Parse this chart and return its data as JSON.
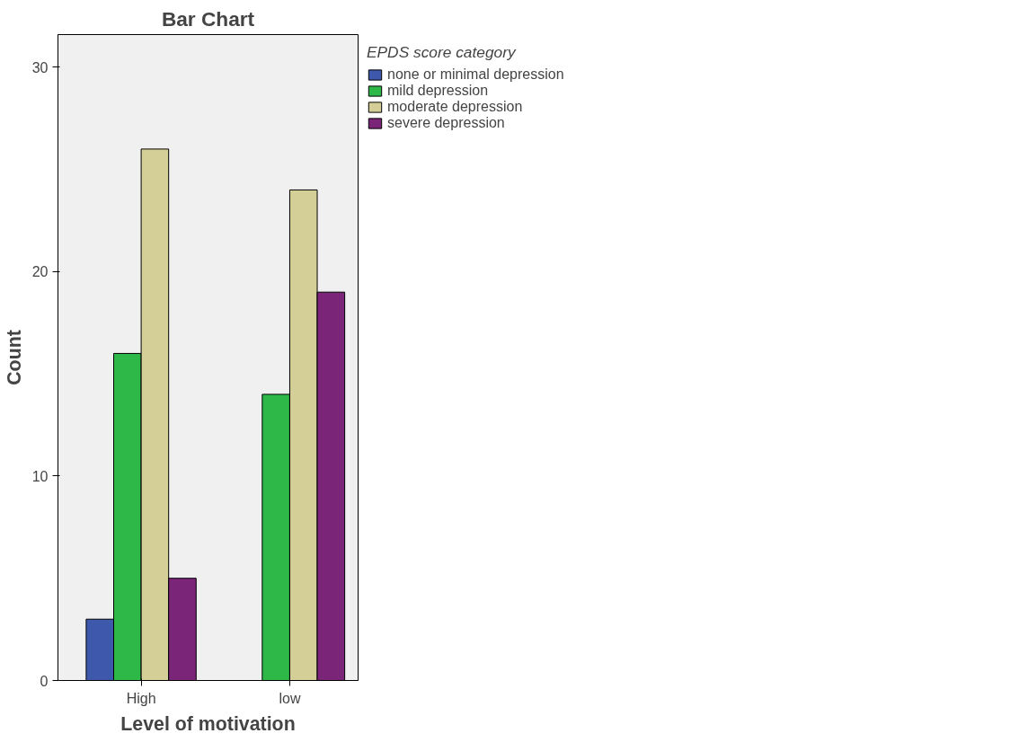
{
  "chart_data": {
    "type": "bar",
    "title": "Bar Chart",
    "xlabel": "Level of motivation",
    "ylabel": "Count",
    "legend_title": "EPDS score category",
    "categories": [
      "High",
      "low"
    ],
    "series": [
      {
        "name": "none or minimal depression",
        "color": "#3e58ac",
        "values": [
          3,
          null
        ]
      },
      {
        "name": "mild depression",
        "color": "#2eb848",
        "values": [
          16,
          14
        ]
      },
      {
        "name": "moderate depression",
        "color": "#d4cf96",
        "values": [
          26,
          24
        ]
      },
      {
        "name": "severe depression",
        "color": "#7b2579",
        "values": [
          5,
          19
        ]
      }
    ],
    "ylim": [
      0,
      31.6
    ],
    "yticks": [
      0,
      10,
      20,
      30
    ],
    "grid": false,
    "legend": "top right"
  }
}
